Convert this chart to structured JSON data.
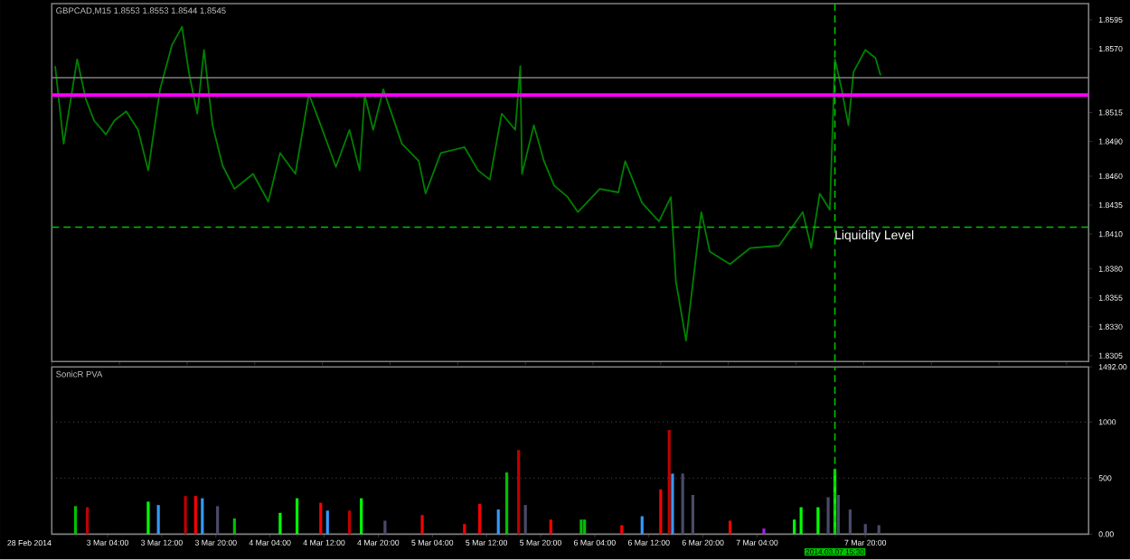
{
  "chart_data": [
    {
      "type": "line",
      "title": "GBPCAD,M15 1.8553 1.8553 1.8544 1.8545",
      "xlim": [
        "2014-03-02T19:45",
        "2014-03-09T05:00"
      ],
      "ylim": [
        1.83,
        1.8609
      ],
      "tick_labels": "y",
      "grid": false,
      "yticks": [
        {
          "value": 1.8595,
          "label": "1.8595"
        },
        {
          "value": 1.857,
          "label": "1.8570"
        },
        {
          "value": 1.8515,
          "label": "1.8515"
        },
        {
          "value": 1.849,
          "label": "1.8490"
        },
        {
          "value": 1.846,
          "label": "1.8460"
        },
        {
          "value": 1.8435,
          "label": "1.8435"
        },
        {
          "value": 1.841,
          "label": "1.8410"
        },
        {
          "value": 1.838,
          "label": "1.8380"
        },
        {
          "value": 1.8355,
          "label": "1.8355"
        },
        {
          "value": 1.833,
          "label": "1.8330"
        },
        {
          "value": 1.8305,
          "label": "1.8305"
        }
      ],
      "ref_lines": [
        {
          "axis": "y",
          "value": 1.8545,
          "color": "#808080",
          "line_style": "solid"
        },
        {
          "axis": "y",
          "value": 1.853,
          "color": "#ff00ff",
          "line_style": "solid"
        },
        {
          "axis": "y",
          "value": 1.8416,
          "color": "#00c000",
          "line_style": "dashed",
          "label": "Liquidity Level"
        },
        {
          "axis": "x",
          "value": "2014-03-07T15:30",
          "color": "#00c000",
          "line_style": "dashed"
        }
      ],
      "series": [
        {
          "color": "#008000",
          "x": [
            "2014-03-02T20:15",
            "2014-03-02T21:30",
            "2014-03-02T23:30",
            "2014-03-03T00:45",
            "2014-03-03T02:00",
            "2014-03-03T03:45",
            "2014-03-03T05:00",
            "2014-03-03T06:45",
            "2014-03-03T08:30",
            "2014-03-03T10:00",
            "2014-03-03T11:45",
            "2014-03-03T13:30",
            "2014-03-03T15:00",
            "2014-03-03T16:00",
            "2014-03-03T17:15",
            "2014-03-03T18:15",
            "2014-03-03T19:30",
            "2014-03-03T21:00",
            "2014-03-03T22:45",
            "2014-03-04T01:30",
            "2014-03-04T03:45",
            "2014-03-04T05:30",
            "2014-03-04T07:45",
            "2014-03-04T09:45",
            "2014-03-04T11:30",
            "2014-03-04T13:45",
            "2014-03-04T15:45",
            "2014-03-04T17:15",
            "2014-03-04T18:00",
            "2014-03-04T19:15",
            "2014-03-04T20:45",
            "2014-03-04T23:30",
            "2014-03-05T02:00",
            "2014-03-05T03:00",
            "2014-03-05T05:15",
            "2014-03-05T08:45",
            "2014-03-05T10:45",
            "2014-03-05T12:30",
            "2014-03-05T14:15",
            "2014-03-05T16:15",
            "2014-03-05T17:00",
            "2014-03-05T17:15",
            "2014-03-05T19:00",
            "2014-03-05T20:30",
            "2014-03-05T22:00",
            "2014-03-06T00:00",
            "2014-03-06T01:30",
            "2014-03-06T04:45",
            "2014-03-06T07:30",
            "2014-03-06T08:30",
            "2014-03-06T11:00",
            "2014-03-06T13:30",
            "2014-03-06T15:15",
            "2014-03-06T16:00",
            "2014-03-06T17:30",
            "2014-03-06T19:45",
            "2014-03-06T21:00",
            "2014-03-07T00:00",
            "2014-03-07T03:00",
            "2014-03-07T07:15",
            "2014-03-07T10:45",
            "2014-03-07T12:00",
            "2014-03-07T13:15",
            "2014-03-07T14:45",
            "2014-03-07T15:30",
            "2014-03-07T16:30",
            "2014-03-07T17:30",
            "2014-03-07T18:15",
            "2014-03-07T20:00",
            "2014-03-07T21:30",
            "2014-03-07T22:15"
          ],
          "values": [
            1.8555,
            1.8488,
            1.8561,
            1.8527,
            1.8508,
            1.8496,
            1.8508,
            1.8516,
            1.85,
            1.8465,
            1.8535,
            1.8573,
            1.8589,
            1.855,
            1.8514,
            1.8569,
            1.8504,
            1.8469,
            1.8449,
            1.8462,
            1.8438,
            1.848,
            1.8462,
            1.8531,
            1.8504,
            1.8468,
            1.85,
            1.8465,
            1.853,
            1.85,
            1.8535,
            1.8488,
            1.8473,
            1.8445,
            1.848,
            1.8485,
            1.8465,
            1.8457,
            1.8514,
            1.85,
            1.8555,
            1.8462,
            1.8504,
            1.8473,
            1.8452,
            1.8442,
            1.8429,
            1.8449,
            1.8446,
            1.8473,
            1.8437,
            1.8421,
            1.8442,
            1.8369,
            1.8318,
            1.8429,
            1.8395,
            1.8384,
            1.8398,
            1.84,
            1.8429,
            1.8398,
            1.8445,
            1.8431,
            1.8561,
            1.8535,
            1.8504,
            1.855,
            1.8569,
            1.8562,
            1.8547
          ]
        }
      ]
    },
    {
      "type": "bar",
      "title": "SonicR PVA",
      "xlim": [
        "2014-03-02T19:45",
        "2014-03-09T05:00"
      ],
      "ylim": [
        0,
        1492
      ],
      "grid": "y",
      "annotations": [
        "28 Feb 2014"
      ],
      "xticks": [
        {
          "value": "2014-03-03T04:00",
          "label": "3 Mar 04:00"
        },
        {
          "value": "2014-03-03T12:00",
          "label": "3 Mar 12:00"
        },
        {
          "value": "2014-03-03T20:00",
          "label": "3 Mar 20:00"
        },
        {
          "value": "2014-03-04T04:00",
          "label": "4 Mar 04:00"
        },
        {
          "value": "2014-03-04T12:00",
          "label": "4 Mar 12:00"
        },
        {
          "value": "2014-03-04T20:00",
          "label": "4 Mar 20:00"
        },
        {
          "value": "2014-03-05T04:00",
          "label": "5 Mar 04:00"
        },
        {
          "value": "2014-03-05T12:00",
          "label": "5 Mar 12:00"
        },
        {
          "value": "2014-03-05T20:00",
          "label": "5 Mar 20:00"
        },
        {
          "value": "2014-03-06T04:00",
          "label": "6 Mar 04:00"
        },
        {
          "value": "2014-03-06T12:00",
          "label": "6 Mar 12:00"
        },
        {
          "value": "2014-03-06T20:00",
          "label": "6 Mar 20:00"
        },
        {
          "value": "2014-03-07T04:00",
          "label": "7 Mar 04:00"
        },
        {
          "value": "2014-03-07T20:00",
          "label": "7 Mar 20:00"
        }
      ],
      "yticks": [
        {
          "value": 0,
          "label": "0.00"
        },
        500,
        1000,
        {
          "value": 1492,
          "label": "1492.00"
        }
      ],
      "ref_lines": [
        {
          "axis": "x",
          "value": "2014-03-07T15:30",
          "color": "#00c000",
          "line_style": "dashed",
          "label": "2014.03.07 15:30"
        }
      ],
      "series": [
        {
          "x": [
            "2014-03-02T23:15",
            "2014-03-03T01:00",
            "2014-03-03T10:00",
            "2014-03-03T11:30",
            "2014-03-03T15:30",
            "2014-03-03T17:00",
            "2014-03-03T18:00",
            "2014-03-03T20:15",
            "2014-03-03T22:45",
            "2014-03-04T05:30",
            "2014-03-04T08:00",
            "2014-03-04T11:30",
            "2014-03-04T12:30",
            "2014-03-04T15:45",
            "2014-03-04T17:30",
            "2014-03-04T21:00",
            "2014-03-05T02:30",
            "2014-03-05T08:45",
            "2014-03-05T11:00",
            "2014-03-05T13:45",
            "2014-03-05T15:00",
            "2014-03-05T16:45",
            "2014-03-05T17:45",
            "2014-03-05T21:30",
            "2014-03-06T02:00",
            "2014-03-06T02:30",
            "2014-03-06T08:00",
            "2014-03-06T11:00",
            "2014-03-06T13:45",
            "2014-03-06T15:00",
            "2014-03-06T15:30",
            "2014-03-06T17:00",
            "2014-03-06T18:30",
            "2014-03-07T00:00",
            "2014-03-07T05:00",
            "2014-03-07T09:30",
            "2014-03-07T10:30",
            "2014-03-07T13:00",
            "2014-03-07T14:30",
            "2014-03-07T15:30",
            "2014-03-07T16:00",
            "2014-03-07T17:45",
            "2014-03-07T20:00",
            "2014-03-07T22:00"
          ],
          "values": [
            250,
            240,
            290,
            260,
            340,
            340,
            320,
            250,
            140,
            190,
            320,
            280,
            210,
            210,
            320,
            120,
            170,
            90,
            270,
            220,
            550,
            750,
            260,
            130,
            130,
            130,
            80,
            160,
            400,
            930,
            540,
            540,
            350,
            120,
            50,
            130,
            240,
            240,
            330,
            580,
            350,
            220,
            90,
            80
          ],
          "colors": [
            "#00c000",
            "#c00000",
            "#00ff00",
            "#3399ff",
            "#c00000",
            "#ff0000",
            "#3399ff",
            "#4a4a6a",
            "#00c000",
            "#00ff00",
            "#00ff00",
            "#ff0000",
            "#3399ff",
            "#c00000",
            "#00ff00",
            "#4a4a6a",
            "#ff0000",
            "#ff0000",
            "#ff0000",
            "#3399ff",
            "#00c000",
            "#c00000",
            "#4a4a6a",
            "#ff0000",
            "#00c000",
            "#00c000",
            "#ff0000",
            "#3399ff",
            "#ff0000",
            "#c00000",
            "#3399ff",
            "#4a4a6a",
            "#4a4a6a",
            "#ff0000",
            "#a020f0",
            "#00ff00",
            "#00ff00",
            "#00ff00",
            "#4a4a6a",
            "#00ff00",
            "#4a4a6a",
            "#4a4a6a",
            "#4a4a6a",
            "#4a4a6a"
          ]
        }
      ]
    }
  ]
}
